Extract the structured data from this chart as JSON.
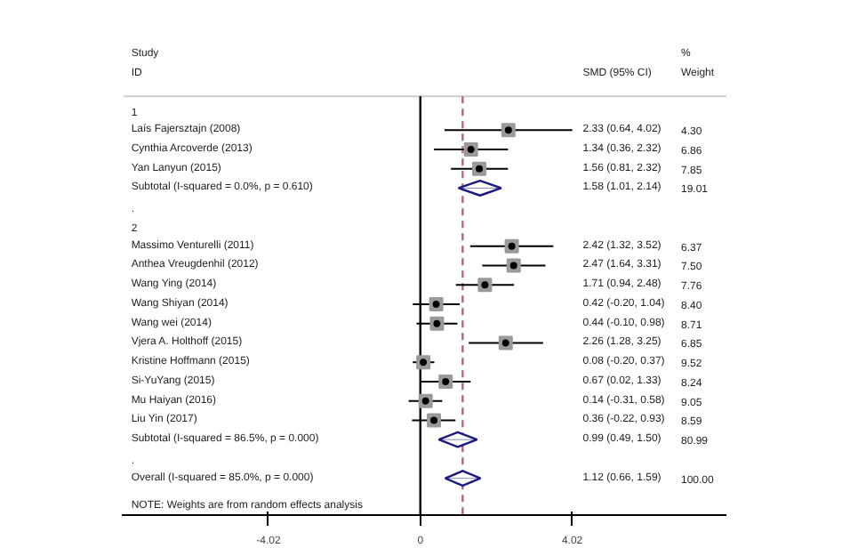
{
  "chart_data": {
    "type": "scatter",
    "orientation": "horizontal",
    "categories": [
      "1",
      "Laís Fajersztajn (2008)",
      "Cynthia Arcoverde (2013)",
      "Yan Lanyun (2015)",
      "Subtotal  (I-squared = 0.0%, p = 0.610)",
      ".",
      "2",
      "Massimo Venturelli (2011)",
      "Anthea Vreugdenhil (2012)",
      "Wang Ying (2014)",
      "Wang Shiyan (2014)",
      "Wang wei (2014)",
      "Vjera A. Holthoff  (2015)",
      "Kristine Hoffmann (2015)",
      "Si-YuYang (2015)",
      "Mu Haiyan (2016)",
      "Liu Yin (2017)",
      "Subtotal  (I-squared = 86.5%, p = 0.000)",
      ".",
      "Overall  (I-squared = 85.0%, p = 0.000)"
    ],
    "series": [
      {
        "color": "#9a9a9a",
        "marker": "square",
        "values": [
          null,
          2.33,
          1.34,
          1.56,
          null,
          null,
          null,
          2.42,
          2.47,
          1.71,
          0.42,
          0.44,
          2.26,
          0.08,
          0.67,
          0.14,
          0.36,
          null,
          null,
          null
        ],
        "errors": [
          null,
          [
            0.64,
            4.02
          ],
          [
            0.36,
            2.32
          ],
          [
            0.81,
            2.32
          ],
          null,
          null,
          null,
          [
            1.32,
            3.52
          ],
          [
            1.64,
            3.31
          ],
          [
            0.94,
            2.48
          ],
          [
            -0.2,
            1.04
          ],
          [
            -0.1,
            0.98
          ],
          [
            1.28,
            3.25
          ],
          [
            -0.2,
            0.37
          ],
          [
            0.02,
            1.33
          ],
          [
            -0.31,
            0.58
          ],
          [
            -0.22,
            0.93
          ],
          null,
          null,
          null
        ]
      },
      {
        "color": "#1a1a80",
        "marker": "diamond",
        "values": [
          null,
          null,
          null,
          null,
          1.58,
          null,
          null,
          null,
          null,
          null,
          null,
          null,
          null,
          null,
          null,
          null,
          null,
          0.99,
          null,
          1.12
        ],
        "errors": [
          null,
          null,
          null,
          null,
          [
            1.01,
            2.14
          ],
          null,
          null,
          null,
          null,
          null,
          null,
          null,
          null,
          null,
          null,
          null,
          null,
          [
            0.49,
            1.5
          ],
          null,
          [
            0.66,
            1.59
          ]
        ]
      }
    ],
    "xlim": [
      -7.9,
      8.1
    ],
    "xticks": [
      -4.02,
      0,
      4.02
    ],
    "ref_lines": [
      {
        "axis": "x",
        "value": 0,
        "color": "#000000",
        "line_style": "solid"
      },
      {
        "axis": "x",
        "value": 1.12,
        "color": "#c06080",
        "line_style": "dashed"
      }
    ],
    "annotations": [
      "Study",
      "ID",
      "SMD (95% CI)",
      "%",
      "Weight",
      "NOTE: Weights are from random effects analysis",
      "2.33 (0.64, 4.02)",
      "1.34 (0.36, 2.32)",
      "1.56 (0.81, 2.32)",
      "1.58 (1.01, 2.14)",
      "2.42 (1.32, 3.52)",
      "2.47 (1.64, 3.31)",
      "1.71 (0.94, 2.48)",
      "0.42 (-0.20, 1.04)",
      "0.44 (-0.10, 0.98)",
      "2.26 (1.28, 3.25)",
      "0.08 (-0.20, 0.37)",
      "0.67 (0.02, 1.33)",
      "0.14 (-0.31, 0.58)",
      "0.36 (-0.22, 0.93)",
      "0.99 (0.49, 1.50)",
      "1.12 (0.66, 1.59)",
      "4.30",
      "6.86",
      "7.85",
      "19.01",
      "6.37",
      "7.50",
      "7.76",
      "8.40",
      "8.71",
      "6.85",
      "9.52",
      "8.24",
      "9.05",
      "8.59",
      "80.99",
      "100.00"
    ],
    "grid": false
  }
}
